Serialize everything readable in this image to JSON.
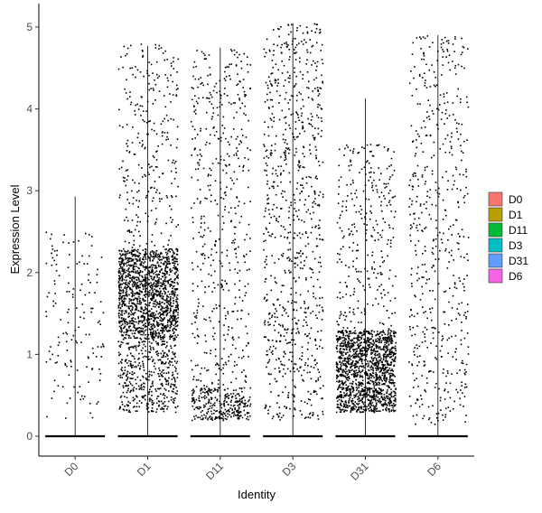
{
  "chart_data": {
    "type": "scatter",
    "subtype": "violin-jitter",
    "xlabel": "Identity",
    "ylabel": "Expression Level",
    "categories": [
      "D0",
      "D1",
      "D11",
      "D3",
      "D31",
      "D6"
    ],
    "ylim": [
      -0.25,
      5.05
    ],
    "yticks": [
      0,
      1,
      2,
      3,
      4,
      5
    ],
    "grid": false,
    "legend": {
      "placement": "right",
      "entries": [
        {
          "label": "D0",
          "color": "#F8766D"
        },
        {
          "label": "D1",
          "color": "#B79F00"
        },
        {
          "label": "D11",
          "color": "#00BA38"
        },
        {
          "label": "D3",
          "color": "#00BFC4"
        },
        {
          "label": "D31",
          "color": "#619CFF"
        },
        {
          "label": "D6",
          "color": "#F564E3"
        }
      ]
    },
    "series": [
      {
        "category": "D0",
        "max": 2.93,
        "zero_fraction": 0.9,
        "nonzero_bands": [
          [
            0.2,
            2.5,
            150
          ]
        ]
      },
      {
        "category": "D1",
        "max": 4.77,
        "zero_fraction": 0.3,
        "nonzero_bands": [
          [
            1.2,
            2.3,
            1400
          ],
          [
            0.3,
            1.2,
            450
          ],
          [
            2.3,
            4.8,
            280
          ]
        ]
      },
      {
        "category": "D11",
        "max": 4.75,
        "zero_fraction": 0.5,
        "nonzero_bands": [
          [
            0.2,
            0.6,
            300
          ],
          [
            0.6,
            4.75,
            500
          ]
        ]
      },
      {
        "category": "D3",
        "max": 5.05,
        "zero_fraction": 0.55,
        "nonzero_bands": [
          [
            0.2,
            5.05,
            850
          ]
        ]
      },
      {
        "category": "D31",
        "max": 4.13,
        "zero_fraction": 0.4,
        "nonzero_bands": [
          [
            0.3,
            1.3,
            1400
          ],
          [
            1.3,
            3.6,
            300
          ]
        ]
      },
      {
        "category": "D6",
        "max": 4.9,
        "zero_fraction": 0.6,
        "nonzero_bands": [
          [
            0.15,
            4.9,
            550
          ]
        ]
      }
    ]
  }
}
